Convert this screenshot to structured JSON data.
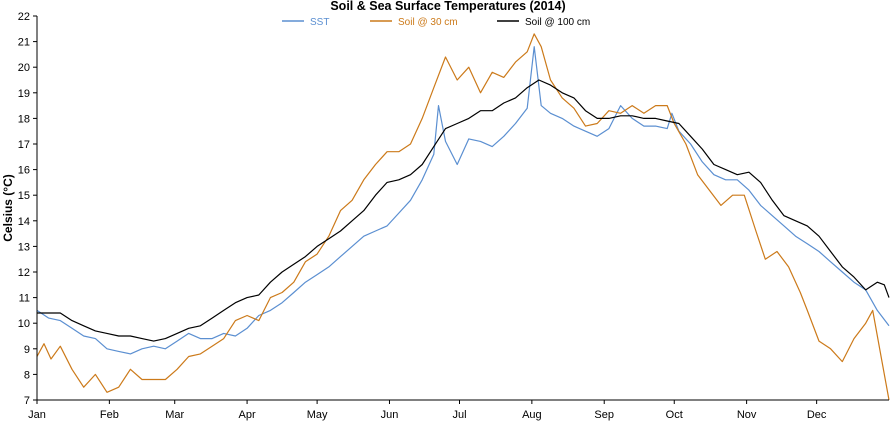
{
  "chart_data": {
    "type": "line",
    "title": "Soil & Sea Surface Temperatures (2014)",
    "ylabel": "Celsius (°C)",
    "xlabel": "",
    "ylim": [
      7,
      22
    ],
    "xlim": [
      0,
      365
    ],
    "yticks": [
      7,
      8,
      9,
      10,
      11,
      12,
      13,
      14,
      15,
      16,
      17,
      18,
      19,
      20,
      21,
      22
    ],
    "month_ticks": [
      {
        "label": "Jan",
        "day": 0
      },
      {
        "label": "Feb",
        "day": 31
      },
      {
        "label": "Mar",
        "day": 59
      },
      {
        "label": "Apr",
        "day": 90
      },
      {
        "label": "May",
        "day": 120
      },
      {
        "label": "Jun",
        "day": 151
      },
      {
        "label": "Jul",
        "day": 181
      },
      {
        "label": "Aug",
        "day": 212
      },
      {
        "label": "Sep",
        "day": 243
      },
      {
        "label": "Oct",
        "day": 273
      },
      {
        "label": "Nov",
        "day": 304
      },
      {
        "label": "Dec",
        "day": 334
      }
    ],
    "grid": false,
    "legend_position": "top",
    "series": [
      {
        "name": "SST",
        "color": "#5b8fd1",
        "points": [
          [
            0,
            10.5
          ],
          [
            5,
            10.2
          ],
          [
            10,
            10.1
          ],
          [
            15,
            9.8
          ],
          [
            20,
            9.5
          ],
          [
            25,
            9.4
          ],
          [
            30,
            9.0
          ],
          [
            35,
            8.9
          ],
          [
            40,
            8.8
          ],
          [
            45,
            9.0
          ],
          [
            50,
            9.1
          ],
          [
            55,
            9.0
          ],
          [
            60,
            9.3
          ],
          [
            65,
            9.6
          ],
          [
            70,
            9.4
          ],
          [
            75,
            9.4
          ],
          [
            80,
            9.6
          ],
          [
            85,
            9.5
          ],
          [
            90,
            9.8
          ],
          [
            95,
            10.3
          ],
          [
            100,
            10.5
          ],
          [
            105,
            10.8
          ],
          [
            110,
            11.2
          ],
          [
            115,
            11.6
          ],
          [
            120,
            11.9
          ],
          [
            125,
            12.2
          ],
          [
            130,
            12.6
          ],
          [
            135,
            13.0
          ],
          [
            140,
            13.4
          ],
          [
            145,
            13.6
          ],
          [
            150,
            13.8
          ],
          [
            155,
            14.3
          ],
          [
            160,
            14.8
          ],
          [
            165,
            15.6
          ],
          [
            170,
            16.6
          ],
          [
            172,
            18.5
          ],
          [
            175,
            17.1
          ],
          [
            180,
            16.2
          ],
          [
            185,
            17.2
          ],
          [
            190,
            17.1
          ],
          [
            195,
            16.9
          ],
          [
            200,
            17.3
          ],
          [
            205,
            17.8
          ],
          [
            210,
            18.4
          ],
          [
            213,
            20.8
          ],
          [
            216,
            18.5
          ],
          [
            220,
            18.2
          ],
          [
            225,
            18.0
          ],
          [
            230,
            17.7
          ],
          [
            235,
            17.5
          ],
          [
            240,
            17.3
          ],
          [
            245,
            17.6
          ],
          [
            250,
            18.5
          ],
          [
            255,
            18.0
          ],
          [
            260,
            17.7
          ],
          [
            265,
            17.7
          ],
          [
            270,
            17.6
          ],
          [
            272,
            18.2
          ],
          [
            275,
            17.5
          ],
          [
            280,
            17.0
          ],
          [
            285,
            16.3
          ],
          [
            290,
            15.8
          ],
          [
            295,
            15.6
          ],
          [
            300,
            15.6
          ],
          [
            305,
            15.2
          ],
          [
            310,
            14.6
          ],
          [
            315,
            14.2
          ],
          [
            320,
            13.8
          ],
          [
            325,
            13.4
          ],
          [
            330,
            13.1
          ],
          [
            335,
            12.8
          ],
          [
            340,
            12.4
          ],
          [
            345,
            12.0
          ],
          [
            350,
            11.6
          ],
          [
            355,
            11.3
          ],
          [
            360,
            10.5
          ],
          [
            365,
            9.9
          ]
        ]
      },
      {
        "name": "Soil @ 30 cm",
        "color": "#cc7a1a",
        "points": [
          [
            0,
            8.7
          ],
          [
            3,
            9.2
          ],
          [
            6,
            8.6
          ],
          [
            10,
            9.1
          ],
          [
            15,
            8.2
          ],
          [
            20,
            7.5
          ],
          [
            25,
            8.0
          ],
          [
            30,
            7.3
          ],
          [
            35,
            7.5
          ],
          [
            40,
            8.2
          ],
          [
            45,
            7.8
          ],
          [
            50,
            7.8
          ],
          [
            55,
            7.8
          ],
          [
            60,
            8.2
          ],
          [
            65,
            8.7
          ],
          [
            70,
            8.8
          ],
          [
            75,
            9.1
          ],
          [
            80,
            9.4
          ],
          [
            85,
            10.1
          ],
          [
            90,
            10.3
          ],
          [
            95,
            10.1
          ],
          [
            100,
            11.0
          ],
          [
            105,
            11.2
          ],
          [
            110,
            11.6
          ],
          [
            115,
            12.4
          ],
          [
            120,
            12.7
          ],
          [
            125,
            13.4
          ],
          [
            130,
            14.4
          ],
          [
            135,
            14.8
          ],
          [
            140,
            15.6
          ],
          [
            145,
            16.2
          ],
          [
            150,
            16.7
          ],
          [
            155,
            16.7
          ],
          [
            160,
            17.0
          ],
          [
            165,
            18.0
          ],
          [
            170,
            19.2
          ],
          [
            175,
            20.4
          ],
          [
            180,
            19.5
          ],
          [
            185,
            20.0
          ],
          [
            190,
            19.0
          ],
          [
            195,
            19.8
          ],
          [
            200,
            19.6
          ],
          [
            205,
            20.2
          ],
          [
            210,
            20.6
          ],
          [
            213,
            21.3
          ],
          [
            216,
            20.8
          ],
          [
            220,
            19.5
          ],
          [
            225,
            18.8
          ],
          [
            230,
            18.4
          ],
          [
            235,
            17.7
          ],
          [
            240,
            17.8
          ],
          [
            245,
            18.3
          ],
          [
            250,
            18.2
          ],
          [
            255,
            18.5
          ],
          [
            260,
            18.2
          ],
          [
            265,
            18.5
          ],
          [
            270,
            18.5
          ],
          [
            273,
            17.8
          ],
          [
            278,
            17.0
          ],
          [
            283,
            15.8
          ],
          [
            288,
            15.2
          ],
          [
            293,
            14.6
          ],
          [
            298,
            15.0
          ],
          [
            303,
            15.0
          ],
          [
            308,
            13.6
          ],
          [
            312,
            12.5
          ],
          [
            317,
            12.8
          ],
          [
            322,
            12.2
          ],
          [
            327,
            11.2
          ],
          [
            330,
            10.5
          ],
          [
            335,
            9.3
          ],
          [
            340,
            9.0
          ],
          [
            345,
            8.5
          ],
          [
            350,
            9.4
          ],
          [
            355,
            10.0
          ],
          [
            358,
            10.5
          ],
          [
            362,
            8.5
          ],
          [
            365,
            7.0
          ]
        ]
      },
      {
        "name": "Soil @ 100 cm",
        "color": "#000000",
        "points": [
          [
            0,
            10.4
          ],
          [
            5,
            10.4
          ],
          [
            10,
            10.4
          ],
          [
            15,
            10.1
          ],
          [
            20,
            9.9
          ],
          [
            25,
            9.7
          ],
          [
            30,
            9.6
          ],
          [
            35,
            9.5
          ],
          [
            40,
            9.5
          ],
          [
            45,
            9.4
          ],
          [
            50,
            9.3
          ],
          [
            55,
            9.4
          ],
          [
            60,
            9.6
          ],
          [
            65,
            9.8
          ],
          [
            70,
            9.9
          ],
          [
            75,
            10.2
          ],
          [
            80,
            10.5
          ],
          [
            85,
            10.8
          ],
          [
            90,
            11.0
          ],
          [
            95,
            11.1
          ],
          [
            100,
            11.6
          ],
          [
            105,
            12.0
          ],
          [
            110,
            12.3
          ],
          [
            115,
            12.6
          ],
          [
            120,
            13.0
          ],
          [
            125,
            13.3
          ],
          [
            130,
            13.6
          ],
          [
            135,
            14.0
          ],
          [
            140,
            14.4
          ],
          [
            145,
            15.0
          ],
          [
            150,
            15.5
          ],
          [
            155,
            15.6
          ],
          [
            160,
            15.8
          ],
          [
            165,
            16.2
          ],
          [
            170,
            16.9
          ],
          [
            175,
            17.6
          ],
          [
            180,
            17.8
          ],
          [
            185,
            18.0
          ],
          [
            190,
            18.3
          ],
          [
            195,
            18.3
          ],
          [
            200,
            18.6
          ],
          [
            205,
            18.8
          ],
          [
            210,
            19.2
          ],
          [
            215,
            19.5
          ],
          [
            220,
            19.3
          ],
          [
            225,
            19.0
          ],
          [
            230,
            18.8
          ],
          [
            235,
            18.3
          ],
          [
            240,
            18.0
          ],
          [
            245,
            18.0
          ],
          [
            250,
            18.1
          ],
          [
            255,
            18.1
          ],
          [
            260,
            18.0
          ],
          [
            265,
            18.0
          ],
          [
            270,
            17.9
          ],
          [
            275,
            17.8
          ],
          [
            280,
            17.3
          ],
          [
            285,
            16.8
          ],
          [
            290,
            16.2
          ],
          [
            295,
            16.0
          ],
          [
            300,
            15.8
          ],
          [
            305,
            15.9
          ],
          [
            310,
            15.5
          ],
          [
            315,
            14.8
          ],
          [
            320,
            14.2
          ],
          [
            325,
            14.0
          ],
          [
            330,
            13.8
          ],
          [
            335,
            13.4
          ],
          [
            340,
            12.8
          ],
          [
            345,
            12.2
          ],
          [
            350,
            11.8
          ],
          [
            355,
            11.3
          ],
          [
            360,
            11.6
          ],
          [
            363,
            11.5
          ],
          [
            365,
            11.0
          ]
        ]
      }
    ]
  }
}
